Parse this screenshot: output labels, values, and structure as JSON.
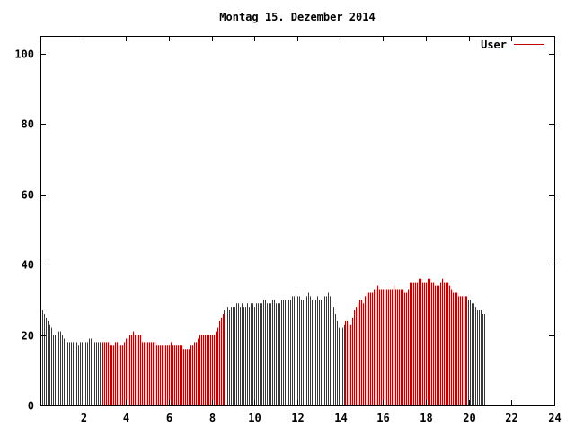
{
  "chart_data": {
    "type": "bar",
    "title": "Montag 15. Dezember 2014",
    "xlabel": "",
    "ylabel": "",
    "xlim": [
      0,
      24
    ],
    "ylim": [
      0,
      105
    ],
    "xticks": [
      2,
      4,
      6,
      8,
      10,
      12,
      14,
      16,
      18,
      20,
      22,
      24
    ],
    "yticks": [
      0,
      20,
      40,
      60,
      80,
      100
    ],
    "grid": false,
    "legend_position": "top-right",
    "series": [
      {
        "name": "User",
        "color": "#c00000",
        "x_step": 0.0833,
        "values": [
          27,
          27,
          26,
          25,
          24,
          23,
          22,
          20,
          20,
          20,
          21,
          21,
          20,
          19,
          18,
          18,
          18,
          18,
          18,
          19,
          18,
          17,
          18,
          18,
          18,
          18,
          18,
          19,
          19,
          19,
          18,
          18,
          18,
          18,
          18,
          18,
          18,
          18,
          18,
          17,
          17,
          17,
          18,
          18,
          17,
          17,
          17,
          18,
          19,
          19,
          20,
          20,
          21,
          20,
          20,
          20,
          20,
          18,
          18,
          18,
          18,
          18,
          18,
          18,
          18,
          17,
          17,
          17,
          17,
          17,
          17,
          17,
          17,
          18,
          17,
          17,
          17,
          17,
          17,
          17,
          16,
          16,
          16,
          16,
          17,
          17,
          18,
          18,
          19,
          20,
          20,
          20,
          20,
          20,
          20,
          20,
          20,
          20,
          21,
          22,
          24,
          25,
          26,
          27,
          27,
          28,
          27,
          28,
          28,
          28,
          29,
          29,
          28,
          29,
          28,
          28,
          29,
          28,
          29,
          29,
          28,
          29,
          29,
          29,
          29,
          30,
          30,
          29,
          29,
          29,
          30,
          30,
          29,
          29,
          29,
          30,
          30,
          30,
          30,
          30,
          30,
          31,
          31,
          32,
          31,
          31,
          30,
          30,
          30,
          31,
          32,
          31,
          30,
          30,
          30,
          31,
          30,
          30,
          30,
          31,
          31,
          32,
          31,
          29,
          28,
          26,
          24,
          22,
          22,
          22,
          23,
          24,
          24,
          23,
          23,
          25,
          27,
          28,
          29,
          30,
          30,
          29,
          31,
          32,
          32,
          32,
          32,
          33,
          33,
          34,
          33,
          33,
          33,
          33,
          33,
          33,
          33,
          33,
          34,
          33,
          33,
          33,
          33,
          33,
          32,
          32,
          33,
          35,
          35,
          35,
          35,
          35,
          36,
          36,
          35,
          35,
          35,
          36,
          36,
          35,
          35,
          34,
          34,
          34,
          35,
          36,
          35,
          35,
          35,
          34,
          33,
          32,
          32,
          32,
          31,
          31,
          31,
          31,
          31,
          31,
          30,
          30,
          29,
          29,
          28,
          27,
          27,
          27,
          26,
          26
        ]
      }
    ]
  }
}
